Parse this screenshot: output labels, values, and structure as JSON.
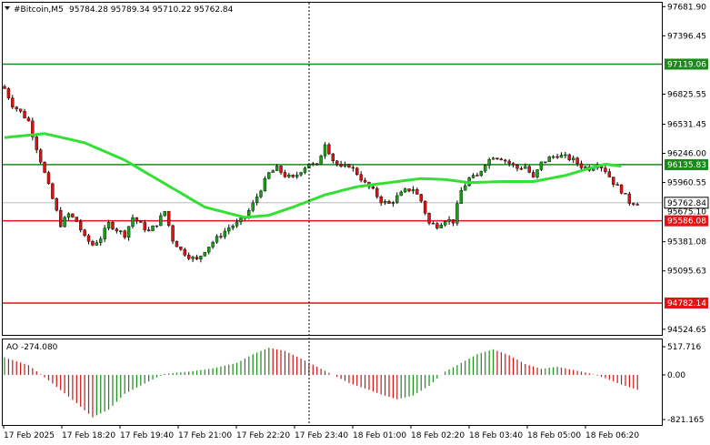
{
  "window": {
    "symbol_label": "#Bitcoin,M5",
    "ohlc_label": "95784.28 95789.34 95710.22 95762.84"
  },
  "colors": {
    "background": "#ffffff",
    "frame": "#000000",
    "grid": "#c0c0c0",
    "bull_candle": "#16a016",
    "bear_candle": "#e01010",
    "candle_wick": "#000000",
    "moving_average": "#33e033",
    "support_resistance_green": "#1a8a1a",
    "support_resistance_red": "#e01414",
    "ao_up": "#1a8a1a",
    "ao_down": "#cc1414",
    "current_price_bg": "#ffffff"
  },
  "main_panel": {
    "y_axis_ticks": [
      "97681.90",
      "97396.45",
      "96825.55",
      "96531.45",
      "96246.00",
      "95960.55",
      "95381.08",
      "95095.63",
      "94524.65"
    ],
    "y_axis_tick_values": [
      97681.9,
      97396.45,
      96825.55,
      96531.45,
      96246.0,
      95960.55,
      95381.08,
      95095.63,
      94524.65
    ],
    "y_range": [
      94470,
      97720
    ],
    "levels": [
      {
        "label": "97119.06",
        "value": 97119.06,
        "color": "green"
      },
      {
        "label": "96135.83",
        "value": 96135.83,
        "color": "green"
      },
      {
        "label": "95586.08",
        "value": 95586.08,
        "color": "red"
      },
      {
        "label": "94782.14",
        "value": 94782.14,
        "color": "red"
      }
    ],
    "current_price_label": "95762.84",
    "current_price_value": 95762.84,
    "bid_label": "95675.10",
    "bid_value": 95675.1
  },
  "ao_panel": {
    "title": "AO -274.080",
    "y_axis_ticks": [
      "517.716",
      "0.00",
      "-821.165"
    ],
    "y_axis_tick_values": [
      517.716,
      0,
      -821.165
    ]
  },
  "x_axis_ticks": [
    "17 Feb 2025",
    "17 Feb 18:20",
    "17 Feb 19:40",
    "17 Feb 21:00",
    "17 Feb 22:20",
    "17 Feb 23:40",
    "18 Feb 01:00",
    "18 Feb 02:20",
    "18 Feb 03:40",
    "18 Feb 05:00",
    "18 Feb 06:20"
  ],
  "chart_data": {
    "type": "candlestick",
    "symbol": "#Bitcoin",
    "timeframe": "M5",
    "x_ticks": [
      "17 Feb 2025",
      "17 Feb 18:20",
      "17 Feb 19:40",
      "17 Feb 21:00",
      "17 Feb 22:20",
      "17 Feb 23:40",
      "18 Feb 01:00",
      "18 Feb 02:20",
      "18 Feb 03:40",
      "18 Feb 05:00",
      "18 Feb 06:20"
    ],
    "ylim": [
      94470,
      97720
    ],
    "close_path": [
      [
        0,
        96880
      ],
      [
        2,
        96720
      ],
      [
        4,
        96650
      ],
      [
        6,
        96560
      ],
      [
        8,
        96300
      ],
      [
        10,
        96050
      ],
      [
        12,
        95800
      ],
      [
        14,
        95550
      ],
      [
        16,
        95650
      ],
      [
        18,
        95580
      ],
      [
        20,
        95420
      ],
      [
        22,
        95350
      ],
      [
        24,
        95420
      ],
      [
        26,
        95560
      ],
      [
        28,
        95500
      ],
      [
        30,
        95450
      ],
      [
        32,
        95620
      ],
      [
        34,
        95550
      ],
      [
        36,
        95480
      ],
      [
        38,
        95560
      ],
      [
        40,
        95680
      ],
      [
        42,
        95400
      ],
      [
        44,
        95300
      ],
      [
        46,
        95240
      ],
      [
        48,
        95200
      ],
      [
        50,
        95300
      ],
      [
        52,
        95380
      ],
      [
        54,
        95450
      ],
      [
        56,
        95520
      ],
      [
        58,
        95560
      ],
      [
        60,
        95620
      ],
      [
        62,
        95750
      ],
      [
        64,
        95900
      ],
      [
        66,
        96050
      ],
      [
        68,
        96100
      ],
      [
        70,
        96030
      ],
      [
        72,
        96000
      ],
      [
        74,
        96080
      ],
      [
        76,
        96150
      ],
      [
        78,
        96120
      ],
      [
        80,
        96350
      ],
      [
        82,
        96180
      ],
      [
        84,
        96100
      ],
      [
        86,
        96130
      ],
      [
        88,
        96050
      ],
      [
        90,
        95950
      ],
      [
        92,
        95880
      ],
      [
        94,
        95780
      ],
      [
        96,
        95750
      ],
      [
        98,
        95820
      ],
      [
        100,
        95880
      ],
      [
        102,
        95900
      ],
      [
        104,
        95780
      ],
      [
        106,
        95560
      ],
      [
        108,
        95540
      ],
      [
        110,
        95600
      ],
      [
        112,
        95580
      ],
      [
        114,
        95880
      ],
      [
        116,
        96000
      ],
      [
        118,
        96020
      ],
      [
        120,
        96150
      ],
      [
        122,
        96220
      ],
      [
        124,
        96200
      ],
      [
        126,
        96150
      ],
      [
        128,
        96100
      ],
      [
        130,
        96120
      ],
      [
        132,
        96000
      ],
      [
        134,
        96150
      ],
      [
        136,
        96200
      ],
      [
        138,
        96230
      ],
      [
        140,
        96210
      ],
      [
        142,
        96180
      ],
      [
        144,
        96120
      ],
      [
        146,
        96100
      ],
      [
        148,
        96150
      ],
      [
        150,
        96080
      ],
      [
        152,
        95960
      ],
      [
        154,
        95880
      ],
      [
        156,
        95770
      ],
      [
        158,
        95762.84
      ]
    ],
    "moving_average_path": [
      [
        0,
        96400
      ],
      [
        10,
        96440
      ],
      [
        20,
        96350
      ],
      [
        30,
        96180
      ],
      [
        40,
        95950
      ],
      [
        50,
        95720
      ],
      [
        60,
        95620
      ],
      [
        66,
        95640
      ],
      [
        72,
        95720
      ],
      [
        80,
        95840
      ],
      [
        88,
        95920
      ],
      [
        96,
        95960
      ],
      [
        104,
        96000
      ],
      [
        110,
        95990
      ],
      [
        116,
        95960
      ],
      [
        124,
        95970
      ],
      [
        132,
        95970
      ],
      [
        140,
        96030
      ],
      [
        146,
        96100
      ],
      [
        150,
        96140
      ],
      [
        154,
        96120
      ]
    ],
    "ao_histogram_path": [
      [
        0,
        320
      ],
      [
        6,
        180
      ],
      [
        12,
        -160
      ],
      [
        18,
        -520
      ],
      [
        22,
        -780
      ],
      [
        26,
        -640
      ],
      [
        30,
        -350
      ],
      [
        36,
        -120
      ],
      [
        40,
        20
      ],
      [
        46,
        60
      ],
      [
        52,
        120
      ],
      [
        58,
        220
      ],
      [
        62,
        380
      ],
      [
        66,
        500
      ],
      [
        70,
        440
      ],
      [
        74,
        300
      ],
      [
        78,
        150
      ],
      [
        82,
        0
      ],
      [
        86,
        -150
      ],
      [
        90,
        -250
      ],
      [
        94,
        -360
      ],
      [
        98,
        -450
      ],
      [
        102,
        -380
      ],
      [
        106,
        -200
      ],
      [
        110,
        60
      ],
      [
        114,
        220
      ],
      [
        118,
        380
      ],
      [
        122,
        470
      ],
      [
        126,
        360
      ],
      [
        130,
        200
      ],
      [
        134,
        110
      ],
      [
        138,
        150
      ],
      [
        142,
        90
      ],
      [
        146,
        30
      ],
      [
        150,
        -60
      ],
      [
        154,
        -180
      ],
      [
        158,
        -274.08
      ]
    ]
  }
}
